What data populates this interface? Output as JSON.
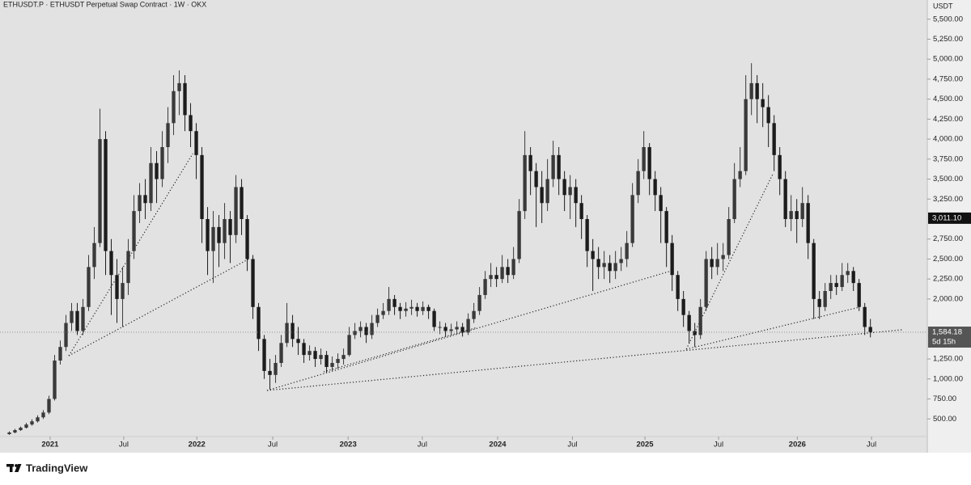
{
  "chart_data": {
    "type": "candlestick",
    "title": "ETHUSDT.P · ETHUSDT Perpetual Swap Contract · 1W · OKX",
    "y_axis_label": "USDT",
    "up_color": "#3a3a3a",
    "down_color": "#1c1c1c",
    "open": [
      310,
      330,
      360,
      390,
      430,
      470,
      520,
      580,
      750,
      1230,
      1400,
      1700,
      1850,
      1600,
      1900,
      2400,
      2700,
      4000,
      2600,
      2300,
      2000,
      2200,
      2600,
      3100,
      3300,
      3200,
      3700,
      3500,
      3900,
      4200,
      4600,
      4700,
      4300,
      4100,
      3800,
      3000,
      2600,
      2900,
      2700,
      3000,
      2800,
      3400,
      3000,
      2500,
      1900,
      1500,
      1100,
      1050,
      1200,
      1450,
      1700,
      1500,
      1450,
      1300,
      1350,
      1250,
      1300,
      1150,
      1200,
      1250,
      1300,
      1550,
      1600,
      1650,
      1550,
      1700,
      1800,
      1850,
      2000,
      1900,
      1850,
      1880,
      1900,
      1850,
      1900,
      1850,
      1650,
      1650,
      1600,
      1620,
      1650,
      1580,
      1750,
      1850,
      2050,
      2250,
      2300,
      2250,
      2400,
      2300,
      2500,
      3100,
      3800,
      3600,
      3400,
      3200,
      3500,
      3800,
      3500,
      3300,
      3400,
      3200,
      3000,
      2600,
      2500,
      2400,
      2450,
      2350,
      2450,
      2500,
      2700,
      3300,
      3600,
      3900,
      3500,
      3300,
      3100,
      2700,
      2300,
      2000,
      1800,
      1600,
      1550,
      1900,
      2500,
      2400,
      2500,
      2550,
      3000,
      3500,
      3600,
      4500,
      4700,
      4500,
      4400,
      4200,
      3800,
      3500,
      3000,
      3100,
      3000,
      3200,
      2700,
      2000,
      1900,
      2100,
      2200,
      2150,
      2300,
      2350,
      2200,
      1900,
      1650
    ],
    "high": [
      345,
      375,
      405,
      450,
      495,
      545,
      610,
      790,
      1300,
      1480,
      1800,
      1950,
      1950,
      2000,
      2550,
      2900,
      4380,
      4100,
      2750,
      2500,
      2400,
      2750,
      3300,
      3450,
      3500,
      3900,
      3850,
      4100,
      4400,
      4800,
      4860,
      4800,
      4450,
      4200,
      3900,
      3150,
      3100,
      3050,
      3200,
      3100,
      3550,
      3500,
      3050,
      2550,
      1950,
      1550,
      1250,
      1300,
      1550,
      1950,
      1800,
      1650,
      1500,
      1420,
      1400,
      1380,
      1350,
      1280,
      1320,
      1380,
      1650,
      1700,
      1720,
      1700,
      1800,
      1880,
      1950,
      2150,
      2050,
      1950,
      1960,
      1990,
      1950,
      1970,
      1930,
      1880,
      1720,
      1700,
      1690,
      1720,
      1700,
      1820,
      1950,
      2150,
      2350,
      2450,
      2400,
      2550,
      2500,
      2650,
      3250,
      4100,
      3900,
      3700,
      3600,
      3750,
      3980,
      3900,
      3600,
      3550,
      3500,
      3300,
      3050,
      2750,
      2650,
      2600,
      2550,
      2600,
      2650,
      2850,
      3450,
      3750,
      4100,
      3950,
      3600,
      3400,
      3150,
      2800,
      2350,
      2100,
      1850,
      1700,
      2000,
      2600,
      2650,
      2700,
      2700,
      3150,
      3700,
      3900,
      4800,
      4950,
      4800,
      4700,
      4550,
      4300,
      3900,
      3600,
      3300,
      3250,
      3400,
      3300,
      2750,
      2100,
      2200,
      2300,
      2300,
      2450,
      2450,
      2400,
      2250,
      1950,
      1750
    ],
    "low": [
      300,
      320,
      350,
      380,
      415,
      455,
      500,
      560,
      730,
      1180,
      1350,
      1600,
      1550,
      1550,
      1850,
      2250,
      2650,
      2300,
      1800,
      1700,
      1650,
      2050,
      2500,
      2950,
      3000,
      3100,
      3200,
      3400,
      3700,
      4050,
      4300,
      4100,
      3900,
      3500,
      2700,
      2300,
      2200,
      2400,
      2500,
      2450,
      2700,
      2800,
      2350,
      1750,
      1350,
      1000,
      870,
      950,
      1150,
      1400,
      1400,
      1300,
      1200,
      1230,
      1150,
      1180,
      1080,
      1100,
      1130,
      1180,
      1280,
      1500,
      1520,
      1450,
      1500,
      1650,
      1750,
      1800,
      1800,
      1750,
      1780,
      1800,
      1780,
      1800,
      1750,
      1600,
      1560,
      1530,
      1540,
      1560,
      1530,
      1550,
      1700,
      1800,
      2000,
      2150,
      2150,
      2200,
      2200,
      2250,
      2450,
      3000,
      3300,
      2900,
      2950,
      3100,
      3400,
      3300,
      3100,
      3000,
      2900,
      2750,
      2400,
      2100,
      2250,
      2250,
      2200,
      2250,
      2350,
      2400,
      2650,
      3200,
      3500,
      3300,
      3100,
      2700,
      2400,
      2100,
      1850,
      1650,
      1450,
      1400,
      1500,
      1850,
      2250,
      2300,
      2350,
      2500,
      2950,
      3400,
      3550,
      4300,
      4200,
      4150,
      3900,
      3600,
      3300,
      2900,
      2850,
      2700,
      2900,
      2500,
      1750,
      1750,
      1850,
      2000,
      2050,
      2100,
      2200,
      2100,
      1850,
      1550,
      1520
    ],
    "close": [
      330,
      360,
      390,
      430,
      470,
      520,
      580,
      750,
      1230,
      1400,
      1700,
      1850,
      1600,
      1900,
      2400,
      2700,
      4000,
      2600,
      2300,
      2000,
      2200,
      2600,
      3100,
      3300,
      3200,
      3700,
      3500,
      3900,
      4200,
      4600,
      4700,
      4300,
      4100,
      3800,
      3000,
      2600,
      2900,
      2700,
      3000,
      2800,
      3400,
      3000,
      2500,
      1900,
      1500,
      1100,
      1050,
      1200,
      1450,
      1700,
      1500,
      1450,
      1300,
      1350,
      1250,
      1300,
      1150,
      1200,
      1250,
      1300,
      1550,
      1600,
      1650,
      1550,
      1700,
      1800,
      1850,
      2000,
      1900,
      1850,
      1880,
      1900,
      1850,
      1900,
      1850,
      1650,
      1650,
      1600,
      1620,
      1650,
      1580,
      1750,
      1850,
      2050,
      2250,
      2300,
      2250,
      2400,
      2300,
      2500,
      3100,
      3800,
      3600,
      3400,
      3200,
      3500,
      3800,
      3500,
      3300,
      3400,
      3200,
      3000,
      2600,
      2500,
      2400,
      2450,
      2350,
      2450,
      2500,
      2700,
      3300,
      3600,
      3900,
      3500,
      3300,
      3100,
      2700,
      2300,
      2000,
      1800,
      1600,
      1550,
      1900,
      2500,
      2400,
      2500,
      2550,
      3000,
      3500,
      3600,
      4500,
      4700,
      4500,
      4400,
      4200,
      3800,
      3500,
      3000,
      3100,
      3000,
      3200,
      2700,
      2000,
      1900,
      2100,
      2200,
      2150,
      2300,
      2350,
      2200,
      1900,
      1650,
      1584.18
    ],
    "xlim": [
      0,
      162.4
    ],
    "xticks": [
      {
        "value": 7.7,
        "label": "2021"
      },
      {
        "value": 20.7,
        "label": "Jul"
      },
      {
        "value": 33.6,
        "label": "2022"
      },
      {
        "value": 47.0,
        "label": "Jul"
      },
      {
        "value": 60.3,
        "label": "2023"
      },
      {
        "value": 73.4,
        "label": "Jul"
      },
      {
        "value": 86.7,
        "label": "2024"
      },
      {
        "value": 99.9,
        "label": "Jul"
      },
      {
        "value": 112.7,
        "label": "2025"
      },
      {
        "value": 125.7,
        "label": "Jul"
      },
      {
        "value": 139.6,
        "label": "2026"
      },
      {
        "value": 152.7,
        "label": "Jul"
      }
    ],
    "ylim": [
      280,
      5740
    ],
    "yticks": [
      {
        "value": 5500,
        "label": "5,500.00"
      },
      {
        "value": 5250,
        "label": "5,250.00"
      },
      {
        "value": 5000,
        "label": "5,000.00"
      },
      {
        "value": 4750,
        "label": "4,750.00"
      },
      {
        "value": 4500,
        "label": "4,500.00"
      },
      {
        "value": 4250,
        "label": "4,250.00"
      },
      {
        "value": 4000,
        "label": "4,000.00"
      },
      {
        "value": 3750,
        "label": "3,750.00"
      },
      {
        "value": 3500,
        "label": "3,500.00"
      },
      {
        "value": 3250,
        "label": "3,250.00"
      },
      {
        "value": 2750,
        "label": "2,750.00"
      },
      {
        "value": 2500,
        "label": "2,500.00"
      },
      {
        "value": 2250,
        "label": "2,250.00"
      },
      {
        "value": 2000,
        "label": "2,000.00"
      },
      {
        "value": 1250,
        "label": "1,250.00"
      },
      {
        "value": 1000,
        "label": "1,000.00"
      },
      {
        "value": 750,
        "label": "750.00"
      },
      {
        "value": 500,
        "label": "500.00"
      }
    ],
    "price_marker": {
      "value": 3011.1,
      "label": "3,011.10"
    },
    "last_price": {
      "value": 1584.18,
      "label": "1,584.18"
    },
    "countdown": "5d 15h",
    "trendlines": [
      {
        "x": [
          11,
          32.9
        ],
        "y": [
          1290,
          3820
        ]
      },
      {
        "x": [
          11,
          42.9
        ],
        "y": [
          1290,
          2505
        ]
      },
      {
        "x": [
          46,
          117.4
        ],
        "y": [
          856,
          2353
        ]
      },
      {
        "x": [
          46,
          158.1
        ],
        "y": [
          856,
          1615
        ]
      },
      {
        "x": [
          56,
          83.1
        ],
        "y": [
          1089,
          1645
        ]
      },
      {
        "x": [
          120,
          150.6
        ],
        "y": [
          1372,
          1898
        ]
      },
      {
        "x": [
          120,
          135.3
        ],
        "y": [
          1372,
          3566
        ]
      }
    ]
  },
  "footer": {
    "brand": "TradingView"
  }
}
